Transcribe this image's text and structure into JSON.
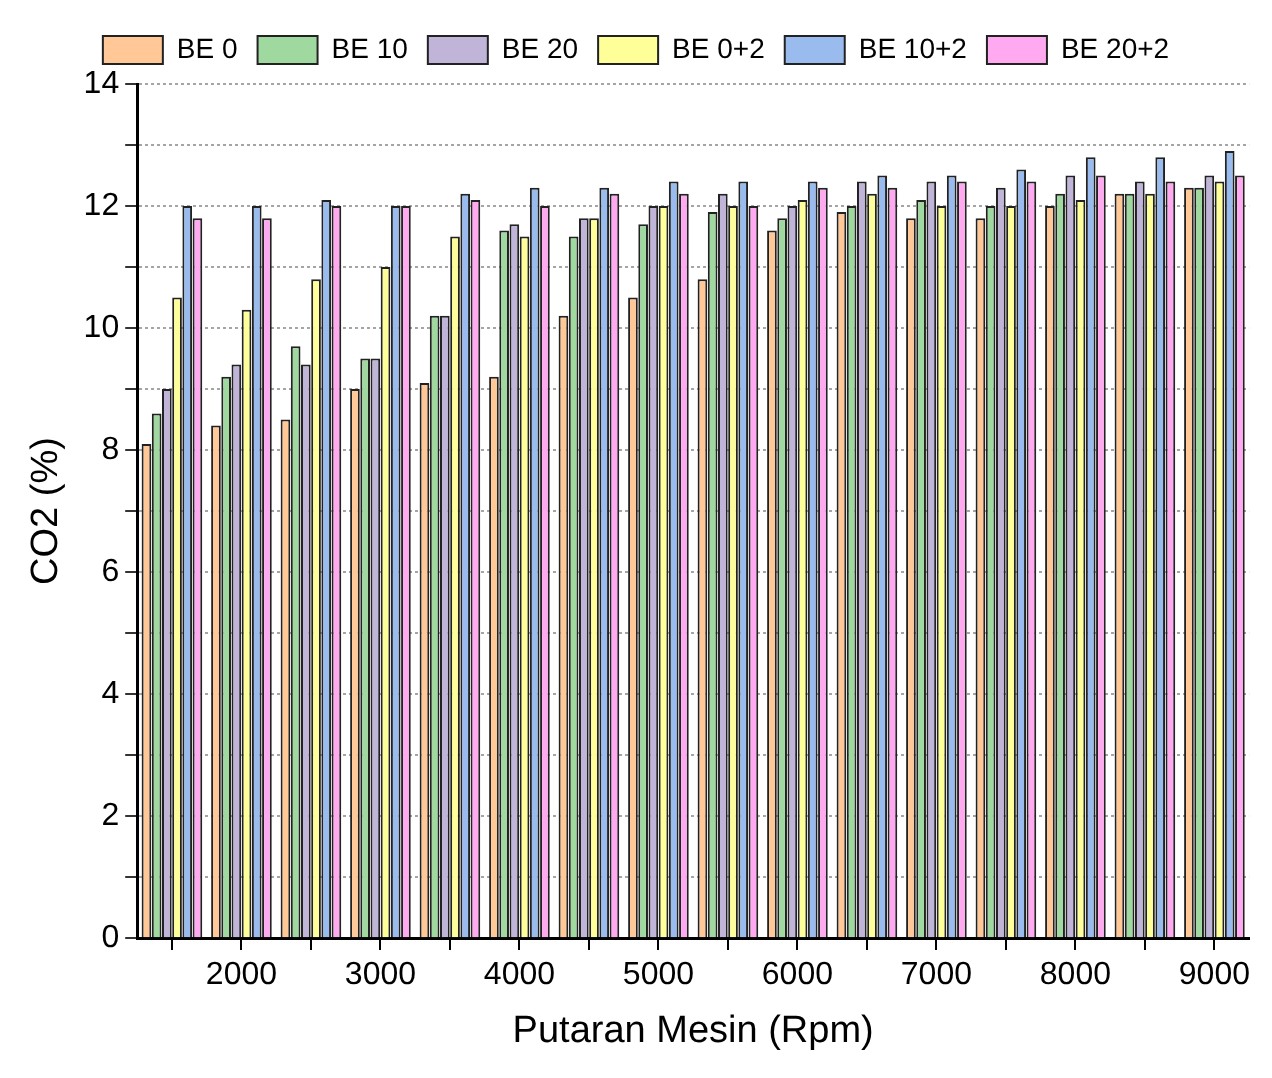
{
  "chart_data": {
    "type": "bar",
    "xlabel": "Putaran Mesin (Rpm)",
    "ylabel": "CO2 (%)",
    "x": [
      1500,
      2000,
      2500,
      3000,
      3500,
      4000,
      4500,
      5000,
      5500,
      6000,
      6500,
      7000,
      7500,
      8000,
      8500,
      9000
    ],
    "series": [
      {
        "name": "BE 0",
        "color": "#ffc896",
        "values": [
          8.1,
          8.4,
          8.5,
          9.0,
          9.1,
          9.2,
          10.2,
          10.5,
          10.8,
          11.6,
          11.9,
          11.8,
          11.8,
          12.0,
          12.2,
          12.3
        ]
      },
      {
        "name": "BE 10",
        "color": "#a0d9a0",
        "values": [
          8.6,
          9.2,
          9.7,
          9.5,
          10.2,
          11.6,
          11.5,
          11.7,
          11.9,
          11.8,
          12.0,
          12.1,
          12.0,
          12.2,
          12.2,
          12.3
        ]
      },
      {
        "name": "BE 20",
        "color": "#c0b4d8",
        "values": [
          9.0,
          9.4,
          9.4,
          9.5,
          10.2,
          11.7,
          11.8,
          12.0,
          12.2,
          12.0,
          12.4,
          12.4,
          12.3,
          12.5,
          12.4,
          12.5
        ]
      },
      {
        "name": "BE 0+2",
        "color": "#ffff99",
        "values": [
          10.5,
          10.3,
          10.8,
          11.0,
          11.5,
          11.5,
          11.8,
          12.0,
          12.0,
          12.1,
          12.2,
          12.0,
          12.0,
          12.1,
          12.2,
          12.4
        ]
      },
      {
        "name": "BE 10+2",
        "color": "#99bbee",
        "values": [
          12.0,
          12.0,
          12.1,
          12.0,
          12.2,
          12.3,
          12.3,
          12.4,
          12.4,
          12.4,
          12.5,
          12.5,
          12.6,
          12.8,
          12.8,
          12.9
        ]
      },
      {
        "name": "BE 20+2",
        "color": "#ffaaf0",
        "values": [
          11.8,
          11.8,
          12.0,
          12.0,
          12.1,
          12.0,
          12.2,
          12.2,
          12.0,
          12.3,
          12.3,
          12.4,
          12.4,
          12.5,
          12.4,
          12.5
        ]
      }
    ],
    "xlim": [
      1250,
      9250
    ],
    "xticks": [
      {
        "value": 1500,
        "label": null
      },
      2000,
      {
        "value": 2500,
        "label": null
      },
      3000,
      {
        "value": 3500,
        "label": null
      },
      4000,
      {
        "value": 4500,
        "label": null
      },
      5000,
      {
        "value": 5500,
        "label": null
      },
      6000,
      {
        "value": 6500,
        "label": null
      },
      7000,
      {
        "value": 7500,
        "label": null
      },
      8000,
      {
        "value": 8500,
        "label": null
      },
      9000
    ],
    "ylim": [
      0,
      14
    ],
    "yticks": [
      0,
      {
        "value": 1,
        "label": null
      },
      2,
      {
        "value": 3,
        "label": null
      },
      4,
      {
        "value": 5,
        "label": null
      },
      6,
      {
        "value": 7,
        "label": null
      },
      8,
      {
        "value": 9,
        "label": null
      },
      10,
      {
        "value": 11,
        "label": null
      },
      12,
      {
        "value": 13,
        "label": null
      },
      14
    ],
    "grid": "y",
    "legend": "top"
  }
}
